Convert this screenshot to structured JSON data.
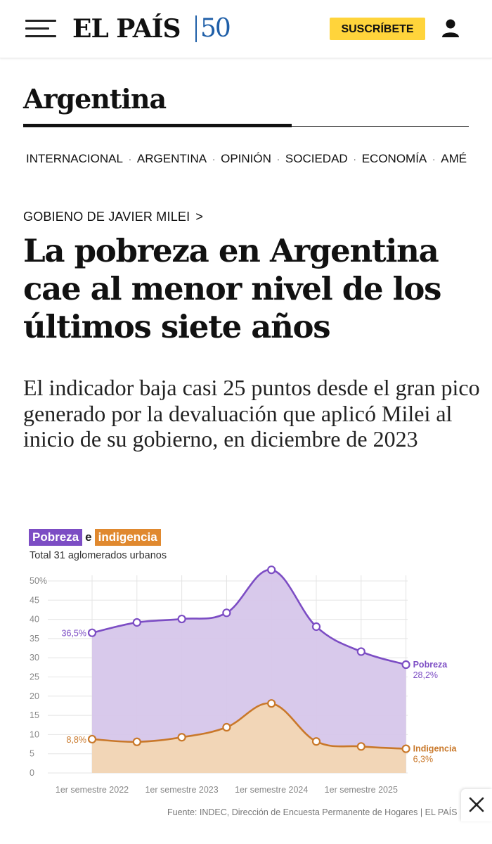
{
  "header": {
    "logo_text": "EL PAÍS",
    "logo_anniversary": "50",
    "subscribe_label": "SUSCRÍBETE",
    "menu_icon": "hamburger-menu-icon",
    "user_icon": "user-icon"
  },
  "section": {
    "title": "Argentina"
  },
  "subnav": {
    "items": [
      "INTERNACIONAL",
      "ARGENTINA",
      "OPINIÓN",
      "SOCIEDAD",
      "ECONOMÍA",
      "AMÉ"
    ]
  },
  "article": {
    "kicker": "GOBIENO DE JAVIER MILEI",
    "kicker_chevron": ">",
    "headline": "La pobreza en Argentina cae al menor nivel de los últimos siete años",
    "subhead": "El indicador baja casi 25 puntos desde el gran pico generado por la devaluación que aplicó Milei al inicio de su gobierno, en diciembre de 2023"
  },
  "chart_heading": {
    "tag_pobreza": "Pobreza",
    "connector": "e",
    "tag_indigencia": "indigencia",
    "subtitle": "Total 31 aglomerados urbanos",
    "source": "Fuente: INDEC, Dirección de Encuesta Permanente de Hogares | EL PAÍS"
  },
  "chart_data": {
    "type": "area",
    "ylim": [
      0,
      50
    ],
    "y_ticks": [
      "0",
      "5",
      "10",
      "15",
      "20",
      "25",
      "30",
      "35",
      "40",
      "45",
      "50%"
    ],
    "x_tick_labels": [
      "1er semestre 2022",
      "1er semestre 2023",
      "1er semestre 2024",
      "1er semestre 2025"
    ],
    "x": [
      "1er semestre 2022",
      "2º semestre 2022",
      "1er semestre 2023",
      "2º semestre 2023",
      "1er semestre 2024",
      "2º semestre 2024",
      "1er semestre 2025",
      "2º semestre 2025"
    ],
    "series": [
      {
        "name": "Pobreza",
        "color": "#7c4dc4",
        "fill": "#d6c6ea",
        "values": [
          36.5,
          39.2,
          40.1,
          41.7,
          52.9,
          38.1,
          31.6,
          28.2
        ],
        "start_label": "36,5%",
        "end_label": "28,2%"
      },
      {
        "name": "Indigencia",
        "color": "#c9782a",
        "fill": "#f3d7b4",
        "values": [
          8.8,
          8.1,
          9.3,
          11.9,
          18.1,
          8.2,
          6.9,
          6.3
        ],
        "start_label": "8,8%",
        "end_label": "6,3%"
      }
    ],
    "grid": true
  },
  "close_icon": "close-icon"
}
